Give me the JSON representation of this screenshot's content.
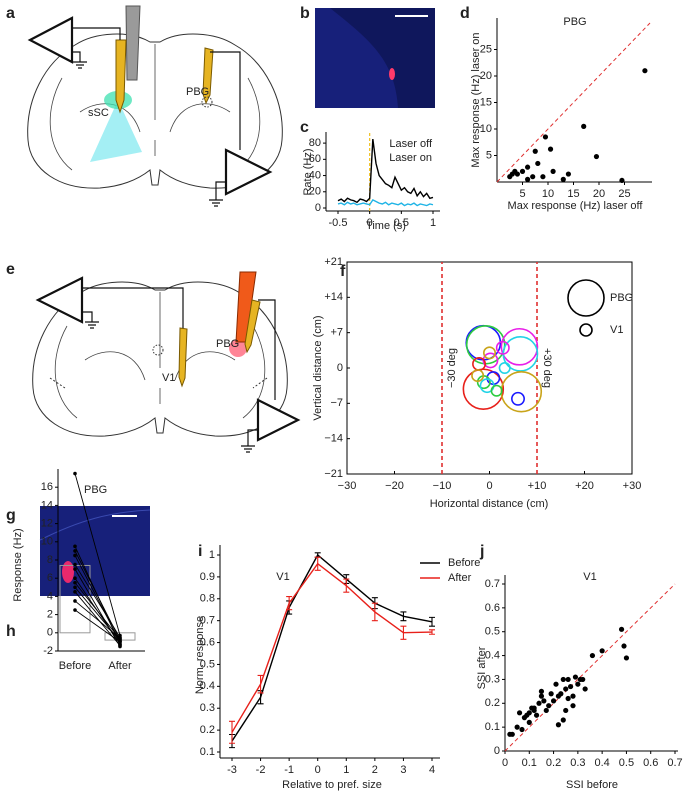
{
  "panel_labels": [
    "a",
    "b",
    "c",
    "d",
    "e",
    "f",
    "g",
    "h",
    "i",
    "j"
  ],
  "diagram_a": {
    "labels": [
      "sSC",
      "PBG"
    ]
  },
  "diagram_e": {
    "labels": [
      "V1",
      "PBG"
    ]
  },
  "chart_data": [
    {
      "type": "line",
      "xlabel": "Time (s)",
      "ylabel": "Rate (Hz)",
      "xlim": [
        -0.5,
        1
      ],
      "ylim": [
        0,
        90
      ],
      "xticks": [
        -0.5,
        0,
        0.5,
        1
      ],
      "yticks": [
        0,
        20,
        40,
        60,
        80
      ],
      "vline": 0,
      "vline_color": "#f0c020",
      "legend": "upper right",
      "legend_swatch": false,
      "x": [
        -0.5,
        -0.45,
        -0.4,
        -0.35,
        -0.3,
        -0.25,
        -0.2,
        -0.15,
        -0.1,
        -0.05,
        0,
        0.05,
        0.1,
        0.15,
        0.2,
        0.25,
        0.3,
        0.35,
        0.4,
        0.45,
        0.5,
        0.55,
        0.6,
        0.65,
        0.7,
        0.75,
        0.8,
        0.85,
        0.9,
        0.95,
        1
      ],
      "series": [
        {
          "name": "Laser off",
          "color": "#000000",
          "values": [
            9,
            11,
            8,
            12,
            10,
            9,
            7,
            11,
            10,
            8,
            12,
            85,
            55,
            40,
            35,
            30,
            28,
            25,
            38,
            30,
            22,
            25,
            20,
            18,
            24,
            15,
            20,
            14,
            18,
            12,
            13
          ]
        },
        {
          "name": "Laser on",
          "color": "#1fb4e6",
          "values": [
            5,
            6,
            4,
            7,
            5,
            6,
            4,
            5,
            6,
            5,
            4,
            10,
            8,
            6,
            5,
            7,
            4,
            6,
            5,
            4,
            6,
            3,
            5,
            4,
            6,
            3,
            5,
            4,
            3,
            5,
            4
          ]
        }
      ]
    },
    {
      "type": "scatter",
      "title": "PBG",
      "xlabel": "Max response (Hz) laser off",
      "ylabel": "Max response (Hz) laser on",
      "xlim": [
        0,
        30
      ],
      "ylim": [
        0,
        30
      ],
      "xticks": [
        5,
        10,
        15,
        20,
        25
      ],
      "yticks": [
        5,
        10,
        15,
        20,
        25
      ],
      "diagonal": true,
      "diagonal_color": "#e03030",
      "color": "#000000",
      "x": [
        29,
        17,
        19.5,
        24.5,
        9.5,
        10.5,
        7.5,
        8,
        6,
        5,
        4,
        3,
        2.5,
        11,
        14,
        13,
        9,
        7,
        6,
        3.5
      ],
      "values": [
        21,
        10.5,
        4.8,
        0.3,
        8.5,
        6.2,
        5.8,
        3.5,
        2.8,
        2,
        1.5,
        1.5,
        1,
        2,
        1.5,
        0.5,
        1,
        1,
        0.5,
        2
      ]
    },
    {
      "type": "bubble",
      "xlabel": "Horizontal distance (cm)",
      "ylabel": "Vertical distance (cm)",
      "xlim": [
        -30,
        30
      ],
      "ylim": [
        -21,
        21
      ],
      "xticks": [
        {
          "value": -30,
          "label": "−30"
        },
        {
          "value": -20,
          "label": "−20"
        },
        {
          "value": -10,
          "label": "−10"
        },
        0,
        {
          "value": 10,
          "label": "+10"
        },
        {
          "value": 20,
          "label": "+20"
        },
        {
          "value": 30,
          "label": "+30"
        }
      ],
      "yticks": [
        {
          "value": -21,
          "label": "−21"
        },
        {
          "value": -14,
          "label": "−14"
        },
        {
          "value": -7,
          "label": "−7"
        },
        0,
        {
          "value": 7,
          "label": "+7"
        },
        {
          "value": 14,
          "label": "+14"
        },
        {
          "value": 21,
          "label": "+21"
        }
      ],
      "vlines": [
        {
          "value": -10,
          "label": "−30 deg"
        },
        {
          "value": 10,
          "label": "+30 deg"
        }
      ],
      "vline_color": "#e03030",
      "legend": "upper right",
      "series": [
        {
          "name": "PBG",
          "x": [
            -1.3,
            -0.8,
            6.3,
            6.5,
            -1.3,
            6.7
          ],
          "values": [
            5,
            4.6,
            4.2,
            2.8,
            -4.2,
            -4.7
          ],
          "sizes": [
            3.6,
            4,
            3.8,
            3.6,
            4.2,
            4.2
          ],
          "colors": [
            "#1a1aff",
            "#2ecc40",
            "#e81ee8",
            "#22d3e6",
            "#e8201a",
            "#c9a41a"
          ]
        },
        {
          "name": "V1",
          "x": [
            0.2,
            0.8,
            -1.2,
            0,
            2.8,
            -2.2,
            3.2,
            6,
            -0.5,
            -2.5,
            1.5
          ],
          "values": [
            1.5,
            -2,
            -2.8,
            3,
            4,
            0.8,
            0,
            -6.1,
            -3.5,
            -1.5,
            -4.5
          ],
          "sizes": [
            1.5,
            1.3,
            1.3,
            1.2,
            1.3,
            1.3,
            1.1,
            1.3,
            1.4,
            1.2,
            1.1
          ],
          "colors": [
            "#e81ee8",
            "#1a1aff",
            "#2ecc40",
            "#c9a41a",
            "#e81ee8",
            "#e8201a",
            "#22d3e6",
            "#1a1aff",
            "#22d3e6",
            "#c9a41a",
            "#2ecc40"
          ]
        }
      ]
    },
    {
      "type": "paired",
      "title": "PBG",
      "ylabel": "Response (Hz)",
      "categories": [
        "Before",
        "After"
      ],
      "ylim": [
        -2,
        18
      ],
      "yticks": [
        -2,
        0,
        2,
        4,
        6,
        8,
        10,
        12,
        14,
        16
      ],
      "values": [
        7.4,
        -0.8
      ],
      "bar_color": "#999999",
      "color": "#000000",
      "pairs": [
        [
          17.5,
          -0.3
        ],
        [
          9.5,
          -1.3
        ],
        [
          9,
          -0.8
        ],
        [
          8.5,
          -1
        ],
        [
          7.5,
          -0.5
        ],
        [
          7,
          -1.5
        ],
        [
          6,
          -1.2
        ],
        [
          5.5,
          -0.7
        ],
        [
          5,
          -0.9
        ],
        [
          4.5,
          -1.4
        ],
        [
          3.5,
          -0.6
        ],
        [
          2.5,
          -1
        ]
      ]
    },
    {
      "type": "line",
      "title": "V1",
      "xlabel": "Relative to pref. size",
      "ylabel": "Norm. response",
      "xlim": [
        -3,
        4
      ],
      "ylim": [
        0.1,
        1
      ],
      "xticks": [
        -3,
        -2,
        -1,
        0,
        1,
        2,
        3,
        4
      ],
      "yticks": [
        0.1,
        0.2,
        0.3,
        0.4,
        0.5,
        0.6,
        0.7,
        0.8,
        0.9,
        1
      ],
      "legend": "upper right",
      "legend_swatch": true,
      "x": [
        -3,
        -2,
        -1,
        0,
        1,
        2,
        3,
        4
      ],
      "series": [
        {
          "name": "Before",
          "color": "#000000",
          "values": [
            0.15,
            0.35,
            0.76,
            1,
            0.89,
            0.78,
            0.72,
            0.695
          ],
          "errors": [
            0.03,
            0.03,
            0.03,
            0.01,
            0.02,
            0.025,
            0.02,
            0.02
          ]
        },
        {
          "name": "After",
          "color": "#e8201a",
          "values": [
            0.19,
            0.41,
            0.78,
            0.96,
            0.86,
            0.74,
            0.645,
            0.648
          ],
          "errors": [
            0.05,
            0.04,
            0.03,
            0.03,
            0.03,
            0.04,
            0.03,
            0.01
          ]
        }
      ]
    },
    {
      "type": "scatter",
      "title": "V1",
      "xlabel": "SSI before",
      "ylabel": "SSI after",
      "xlim": [
        0,
        0.7
      ],
      "ylim": [
        0,
        0.7
      ],
      "xticks": [
        0,
        0.1,
        0.2,
        0.3,
        0.4,
        0.5,
        0.6,
        0.7
      ],
      "yticks": [
        0,
        0.1,
        0.2,
        0.3,
        0.4,
        0.5,
        0.6,
        0.7
      ],
      "diagonal": true,
      "diagonal_color": "#e03030",
      "color": "#000000",
      "x": [
        0.02,
        0.03,
        0.05,
        0.06,
        0.07,
        0.08,
        0.09,
        0.1,
        0.1,
        0.11,
        0.12,
        0.13,
        0.14,
        0.15,
        0.16,
        0.17,
        0.18,
        0.19,
        0.2,
        0.21,
        0.22,
        0.23,
        0.24,
        0.24,
        0.25,
        0.25,
        0.26,
        0.27,
        0.28,
        0.29,
        0.3,
        0.31,
        0.32,
        0.33,
        0.36,
        0.4,
        0.48,
        0.49,
        0.5,
        0.26,
        0.28,
        0.22,
        0.15,
        0.12
      ],
      "values": [
        0.07,
        0.07,
        0.1,
        0.16,
        0.09,
        0.14,
        0.15,
        0.16,
        0.12,
        0.18,
        0.17,
        0.15,
        0.2,
        0.25,
        0.21,
        0.17,
        0.19,
        0.24,
        0.21,
        0.28,
        0.23,
        0.24,
        0.13,
        0.3,
        0.26,
        0.17,
        0.3,
        0.27,
        0.23,
        0.31,
        0.28,
        0.3,
        0.3,
        0.26,
        0.4,
        0.42,
        0.51,
        0.44,
        0.39,
        0.22,
        0.19,
        0.11,
        0.23,
        0.18
      ]
    }
  ]
}
